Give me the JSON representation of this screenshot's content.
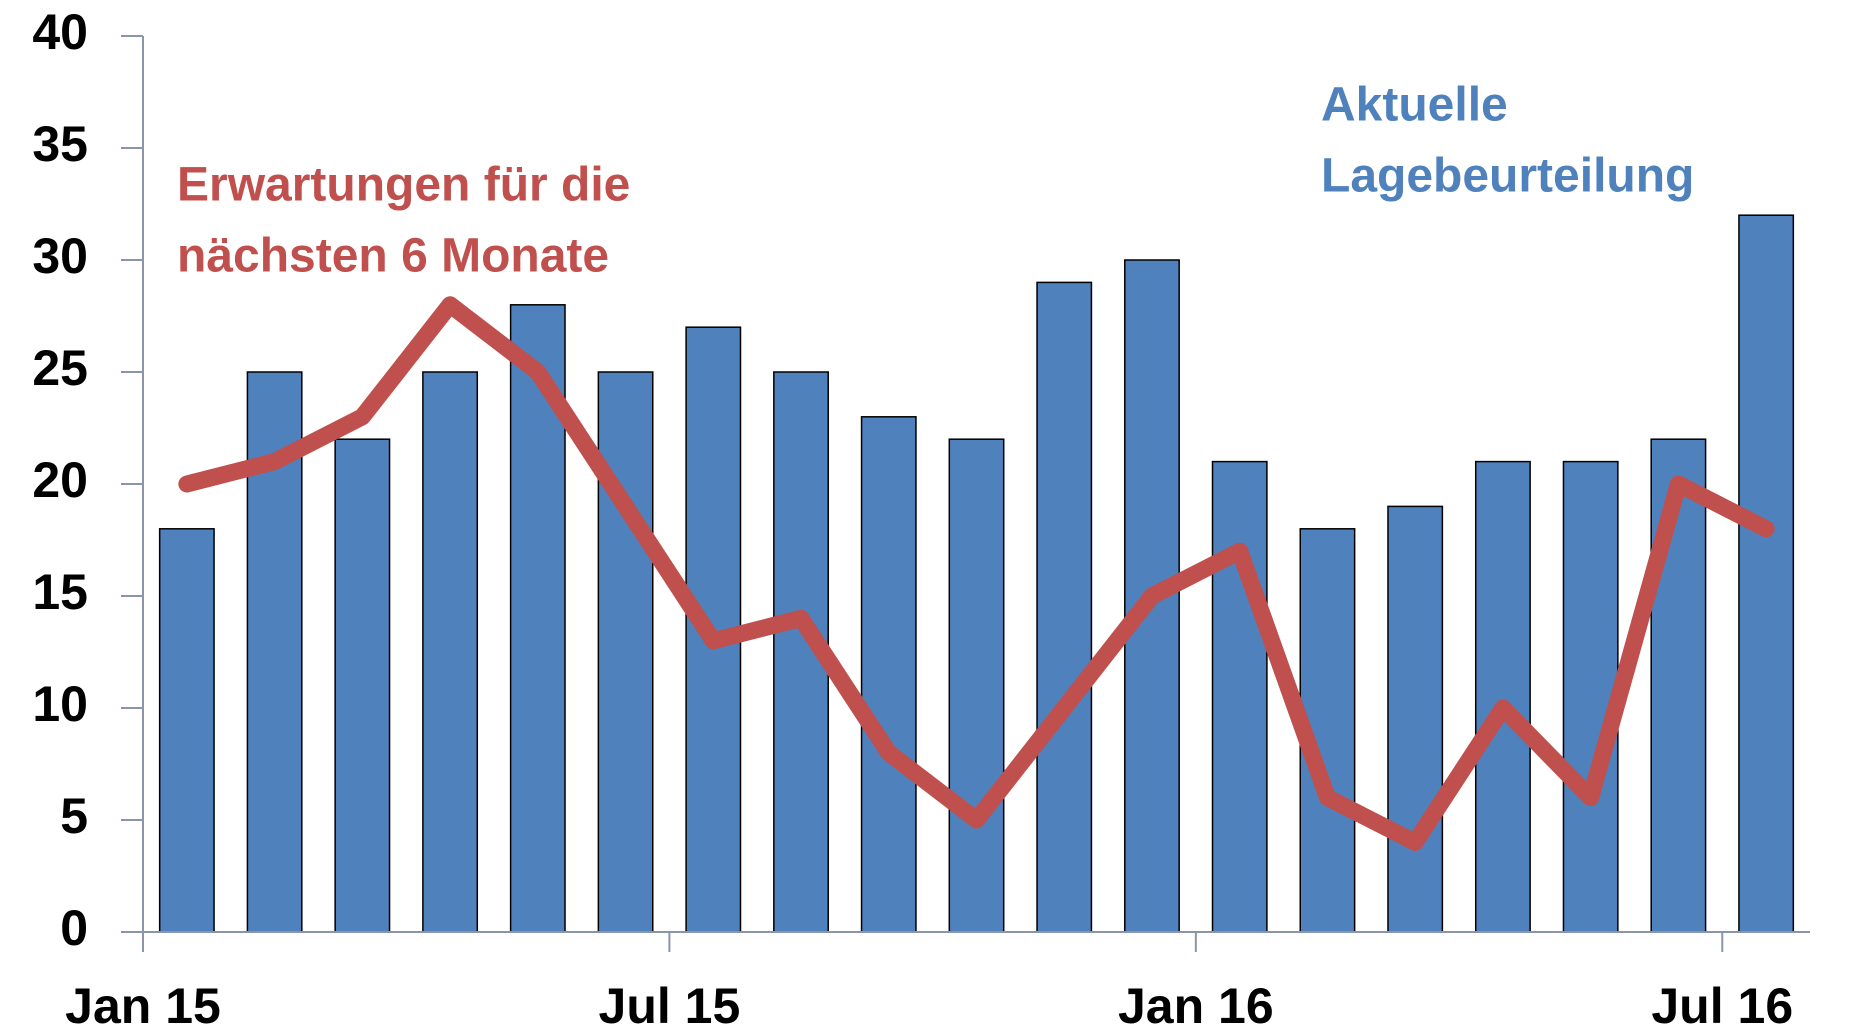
{
  "chart_data": {
    "type": "bar-line",
    "categories": [
      "Jan 15",
      null,
      null,
      null,
      null,
      null,
      "Jul 15",
      null,
      null,
      null,
      null,
      null,
      "Jan 16",
      null,
      null,
      null,
      null,
      null,
      "Jul 16"
    ],
    "series": [
      {
        "type": "bar",
        "color": "#4f81bd",
        "values": [
          18,
          25,
          22,
          25,
          28,
          25,
          27,
          25,
          23,
          22,
          29,
          30,
          21,
          18,
          19,
          21,
          21,
          22,
          32
        ]
      },
      {
        "type": "line",
        "color": "#c0504d",
        "values": [
          20,
          21,
          23,
          28,
          25,
          19,
          13,
          14,
          8,
          5,
          10,
          15,
          17,
          6,
          4,
          10,
          6,
          20,
          18
        ]
      }
    ],
    "annotations": [
      {
        "lines": [
          "Erwartungen für die",
          "nächsten 6 Monate"
        ],
        "color": "#c0504d"
      },
      {
        "lines": [
          "Aktuelle",
          "Lagebeurteilung"
        ],
        "color": "#4f81bd"
      }
    ],
    "ylim": [
      0,
      40
    ],
    "yticks": [
      0,
      5,
      10,
      15,
      20,
      25,
      30,
      35,
      40
    ]
  }
}
